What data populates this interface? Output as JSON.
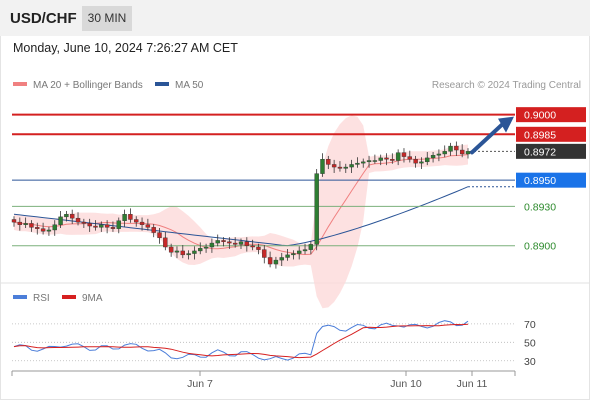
{
  "header": {
    "symbol": "USD/CHF",
    "interval": "30 MIN",
    "timestamp": "Monday, June 10, 2024 7:26:27 AM CET"
  },
  "legend": {
    "items": [
      {
        "label": "MA 20 + Bollinger Bands",
        "color": "#f08080"
      },
      {
        "label": "MA 50",
        "color": "#2b5597"
      }
    ],
    "copyright": "Research © 2024 Trading Central"
  },
  "rsi_legend": {
    "items": [
      {
        "label": "RSI",
        "color": "#4c7ed9"
      },
      {
        "label": "9MA",
        "color": "#d62020"
      }
    ]
  },
  "chart_data": [
    {
      "type": "candlestick",
      "panel": "price",
      "ylim": [
        0.887,
        0.9015
      ],
      "x_ticks": [
        "Jun 7",
        "Jun 10",
        "Jun 11"
      ],
      "levels": [
        {
          "value": 0.9,
          "label": "0.9000",
          "style": "resistance",
          "color": "#d42020"
        },
        {
          "value": 0.8985,
          "label": "0.8985",
          "style": "resistance",
          "color": "#d42020"
        },
        {
          "value": 0.8972,
          "label": "0.8972",
          "style": "last-price",
          "color": "#333333"
        },
        {
          "value": 0.895,
          "label": "0.8950",
          "style": "pivot",
          "color": "#1a73e8"
        },
        {
          "value": 0.893,
          "label": "0.8930",
          "style": "support",
          "color": "#2e8b2e"
        },
        {
          "value": 0.89,
          "label": "0.8900",
          "style": "support",
          "color": "#2e8b2e"
        }
      ],
      "close": [
        0.8918,
        0.8916,
        0.8917,
        0.8914,
        0.8913,
        0.8911,
        0.8912,
        0.8916,
        0.8922,
        0.8924,
        0.8921,
        0.8918,
        0.8917,
        0.8915,
        0.8914,
        0.8916,
        0.8914,
        0.8913,
        0.8919,
        0.8924,
        0.892,
        0.8918,
        0.8916,
        0.8914,
        0.891,
        0.8906,
        0.8899,
        0.8895,
        0.8896,
        0.8893,
        0.8894,
        0.8896,
        0.8898,
        0.8899,
        0.8902,
        0.8904,
        0.8903,
        0.8902,
        0.8901,
        0.8903,
        0.89,
        0.8899,
        0.8897,
        0.8891,
        0.8886,
        0.8889,
        0.8891,
        0.8893,
        0.8894,
        0.8896,
        0.8897,
        0.8901,
        0.8955,
        0.8966,
        0.8962,
        0.896,
        0.8959,
        0.896,
        0.8962,
        0.8963,
        0.8964,
        0.8965,
        0.8965,
        0.8967,
        0.8966,
        0.8965,
        0.8971,
        0.8968,
        0.8966,
        0.8963,
        0.8964,
        0.8967,
        0.8969,
        0.897,
        0.8972,
        0.8976,
        0.8973,
        0.897,
        0.8972
      ],
      "ma50_start": 0.8924,
      "ma50_end": 0.8945,
      "forecast_target": 0.9,
      "rsi_panel": {
        "ylim": [
          20,
          85
        ],
        "levels": [
          70,
          50,
          30
        ],
        "rsi_start": 38,
        "rsi_end": 60,
        "ma9_start": 42,
        "ma9_end": 64
      }
    }
  ]
}
